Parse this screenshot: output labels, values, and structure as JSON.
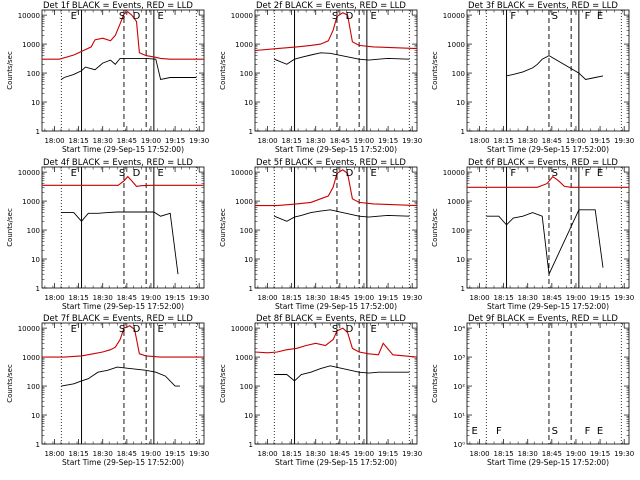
{
  "figure": {
    "xlabel": "Start Time (29-Sep-15 17:52:00)",
    "ylabel": "Counts/sec",
    "xtick_labels": [
      "18:00",
      "18:15",
      "18:30",
      "18:45",
      "19:00",
      "19:15",
      "19:30"
    ],
    "ytick_labels_log": [
      "1",
      "10",
      "100",
      "1000",
      "10000"
    ],
    "ytick_labels_empty": [
      "10⁰",
      "10¹",
      "10²",
      "10³",
      "10⁴"
    ],
    "colors": {
      "events": "#000000",
      "lld": "#cc0000",
      "frame": "#000000"
    }
  },
  "chart_data": [
    {
      "type": "line",
      "title": "Det 1f BLACK = Events, RED = LLD",
      "xlim": [
        17.87,
        19.55
      ],
      "ylim": [
        1,
        15000
      ],
      "yscale": "log",
      "dotted_x": [
        18.07,
        19.47
      ],
      "solid_x": [
        18.28,
        19.03
      ],
      "dashed_x": [
        18.72,
        18.95
      ],
      "markers": [
        {
          "x": 18.2,
          "text": "E"
        },
        {
          "x": 18.7,
          "text": "S"
        },
        {
          "x": 18.85,
          "text": "D"
        },
        {
          "x": 19.1,
          "text": "E"
        }
      ],
      "series": [
        {
          "color": "red",
          "x": [
            17.87,
            18.05,
            18.2,
            18.3,
            18.38,
            18.42,
            18.5,
            18.58,
            18.63,
            18.68,
            18.72,
            18.76,
            18.8,
            18.85,
            18.88,
            18.95,
            19.05,
            19.1,
            19.2,
            19.55
          ],
          "y": [
            300,
            300,
            420,
            600,
            800,
            1400,
            1600,
            1300,
            2000,
            5000,
            11000,
            13000,
            10000,
            6000,
            500,
            400,
            350,
            320,
            300,
            300
          ]
        },
        {
          "color": "black",
          "x": [
            18.07,
            18.1,
            18.2,
            18.28,
            18.32,
            18.42,
            18.5,
            18.58,
            18.63,
            18.68,
            18.95,
            19.05,
            19.1,
            19.2,
            19.47
          ],
          "y": [
            60,
            70,
            90,
            120,
            160,
            130,
            220,
            280,
            200,
            320,
            320,
            300,
            60,
            70,
            70
          ]
        }
      ]
    },
    {
      "type": "line",
      "title": "Det 2f BLACK = Events, RED = LLD",
      "xlim": [
        17.87,
        19.55
      ],
      "ylim": [
        1,
        15000
      ],
      "yscale": "log",
      "dotted_x": [
        18.07,
        19.47
      ],
      "solid_x": [
        18.28,
        19.03
      ],
      "dashed_x": [
        18.72,
        18.95
      ],
      "markers": [
        {
          "x": 18.7,
          "text": "S"
        },
        {
          "x": 18.85,
          "text": "D"
        },
        {
          "x": 19.1,
          "text": "E"
        }
      ],
      "series": [
        {
          "color": "red",
          "x": [
            17.87,
            18.1,
            18.3,
            18.45,
            18.55,
            18.63,
            18.68,
            18.72,
            18.78,
            18.83,
            18.88,
            18.95,
            19.1,
            19.55
          ],
          "y": [
            600,
            700,
            800,
            900,
            1000,
            1300,
            3000,
            9000,
            12000,
            10000,
            1200,
            900,
            800,
            700
          ]
        },
        {
          "color": "black",
          "x": [
            18.07,
            18.2,
            18.28,
            18.35,
            18.45,
            18.55,
            18.65,
            18.95,
            19.05,
            19.15,
            19.25,
            19.47
          ],
          "y": [
            300,
            200,
            300,
            350,
            420,
            500,
            480,
            300,
            280,
            300,
            320,
            300
          ]
        }
      ]
    },
    {
      "type": "line",
      "title": "Det 3f BLACK = Events, RED = LLD",
      "xlim": [
        17.87,
        19.55
      ],
      "ylim": [
        1,
        15000
      ],
      "yscale": "log",
      "dotted_x": [
        18.07,
        19.47
      ],
      "solid_x": [
        18.28,
        19.03
      ],
      "dashed_x": [
        18.72,
        18.95
      ],
      "markers": [
        {
          "x": 18.35,
          "text": "F"
        },
        {
          "x": 18.78,
          "text": "S"
        },
        {
          "x": 19.12,
          "text": "F"
        },
        {
          "x": 19.25,
          "text": "E"
        }
      ],
      "series": [
        {
          "color": "black",
          "x": [
            18.28,
            18.35,
            18.45,
            18.55,
            18.6,
            18.65,
            18.72,
            19.03,
            19.1,
            19.2,
            19.28
          ],
          "y": [
            80,
            90,
            110,
            150,
            200,
            300,
            400,
            100,
            60,
            70,
            80
          ]
        }
      ]
    },
    {
      "type": "line",
      "title": "Det 4f BLACK = Events, RED = LLD",
      "xlim": [
        17.87,
        19.55
      ],
      "ylim": [
        1,
        15000
      ],
      "yscale": "log",
      "dotted_x": [
        18.07,
        19.47
      ],
      "solid_x": [
        18.28,
        19.03
      ],
      "dashed_x": [
        18.72,
        18.95
      ],
      "markers": [
        {
          "x": 18.2,
          "text": "E"
        },
        {
          "x": 18.7,
          "text": "S"
        },
        {
          "x": 18.85,
          "text": "D"
        },
        {
          "x": 19.1,
          "text": "E"
        }
      ],
      "series": [
        {
          "color": "red",
          "x": [
            17.87,
            18.6,
            18.66,
            18.72,
            18.76,
            18.8,
            18.85,
            18.9,
            19.0,
            19.55
          ],
          "y": [
            3500,
            3500,
            3500,
            5000,
            7000,
            5000,
            3200,
            3400,
            3500,
            3500
          ]
        },
        {
          "color": "black",
          "x": [
            18.07,
            18.2,
            18.28,
            18.35,
            18.45,
            18.55,
            18.65,
            19.03,
            19.1,
            19.2,
            19.28
          ],
          "y": [
            400,
            400,
            200,
            380,
            380,
            400,
            420,
            420,
            300,
            380,
            3
          ]
        }
      ]
    },
    {
      "type": "line",
      "title": "Det 5f BLACK = Events, RED = LLD",
      "xlim": [
        17.87,
        19.55
      ],
      "ylim": [
        1,
        15000
      ],
      "yscale": "log",
      "dotted_x": [
        18.07,
        19.47
      ],
      "solid_x": [
        18.28,
        19.03
      ],
      "dashed_x": [
        18.72,
        18.95
      ],
      "markers": [
        {
          "x": 18.7,
          "text": "S"
        },
        {
          "x": 18.85,
          "text": "D"
        },
        {
          "x": 19.1,
          "text": "E"
        }
      ],
      "series": [
        {
          "color": "red",
          "x": [
            17.87,
            18.1,
            18.3,
            18.45,
            18.55,
            18.63,
            18.68,
            18.72,
            18.78,
            18.83,
            18.88,
            18.95,
            19.1,
            19.55
          ],
          "y": [
            700,
            700,
            800,
            900,
            1200,
            1500,
            3000,
            9000,
            12000,
            9000,
            1200,
            900,
            800,
            700
          ]
        },
        {
          "color": "black",
          "x": [
            18.07,
            18.2,
            18.28,
            18.35,
            18.45,
            18.55,
            18.65,
            18.95,
            19.05,
            19.15,
            19.25,
            19.47
          ],
          "y": [
            300,
            200,
            280,
            320,
            400,
            450,
            500,
            300,
            280,
            300,
            320,
            300
          ]
        }
      ]
    },
    {
      "type": "line",
      "title": "Det 6f BLACK = Events, RED = LLD",
      "xlim": [
        17.87,
        19.55
      ],
      "ylim": [
        1,
        15000
      ],
      "yscale": "log",
      "dotted_x": [
        18.07,
        19.47
      ],
      "solid_x": [
        18.28,
        19.03
      ],
      "dashed_x": [
        18.72,
        18.95
      ],
      "markers": [
        {
          "x": 18.35,
          "text": "F"
        },
        {
          "x": 18.78,
          "text": "S"
        },
        {
          "x": 19.12,
          "text": "F"
        },
        {
          "x": 19.25,
          "text": "E"
        }
      ],
      "series": [
        {
          "color": "red",
          "x": [
            17.87,
            18.6,
            18.7,
            18.76,
            18.82,
            18.88,
            18.95,
            19.1,
            19.55
          ],
          "y": [
            3000,
            3000,
            4000,
            7000,
            5000,
            3200,
            3000,
            3000,
            3000
          ]
        },
        {
          "color": "black",
          "x": [
            18.07,
            18.2,
            18.28,
            18.35,
            18.45,
            18.55,
            18.65,
            18.72,
            19.03,
            19.1,
            19.2,
            19.28
          ],
          "y": [
            300,
            300,
            150,
            260,
            300,
            400,
            300,
            3,
            500,
            500,
            500,
            5
          ]
        }
      ]
    },
    {
      "type": "line",
      "title": "Det 7f BLACK = Events, RED = LLD",
      "xlim": [
        17.87,
        19.55
      ],
      "ylim": [
        1,
        15000
      ],
      "yscale": "log",
      "dotted_x": [
        18.07,
        19.47
      ],
      "solid_x": [
        18.28,
        19.03
      ],
      "dashed_x": [
        18.72,
        18.95
      ],
      "markers": [
        {
          "x": 18.2,
          "text": "E"
        },
        {
          "x": 18.7,
          "text": "S"
        },
        {
          "x": 18.85,
          "text": "D"
        },
        {
          "x": 19.1,
          "text": "E"
        }
      ],
      "series": [
        {
          "color": "red",
          "x": [
            17.87,
            18.1,
            18.28,
            18.4,
            18.5,
            18.58,
            18.63,
            18.68,
            18.72,
            18.78,
            18.83,
            18.88,
            18.95,
            19.1,
            19.55
          ],
          "y": [
            1000,
            1000,
            1100,
            1300,
            1500,
            1800,
            2200,
            4000,
            10000,
            12000,
            9000,
            1300,
            1100,
            1000,
            1000
          ]
        },
        {
          "color": "black",
          "x": [
            18.07,
            18.2,
            18.28,
            18.35,
            18.45,
            18.55,
            18.65,
            18.95,
            19.05,
            19.15,
            19.25,
            19.3
          ],
          "y": [
            100,
            120,
            150,
            180,
            300,
            350,
            450,
            350,
            300,
            220,
            100,
            100
          ]
        }
      ]
    },
    {
      "type": "line",
      "title": "Det 8f BLACK = Events, RED = LLD",
      "xlim": [
        17.87,
        19.55
      ],
      "ylim": [
        1,
        15000
      ],
      "yscale": "log",
      "dotted_x": [
        18.07,
        19.47
      ],
      "solid_x": [
        18.28,
        19.03
      ],
      "dashed_x": [
        18.72,
        18.95
      ],
      "markers": [
        {
          "x": 18.7,
          "text": "S"
        },
        {
          "x": 18.85,
          "text": "D"
        },
        {
          "x": 19.1,
          "text": "E"
        }
      ],
      "series": [
        {
          "color": "red",
          "x": [
            17.87,
            18.0,
            18.1,
            18.2,
            18.3,
            18.4,
            18.5,
            18.6,
            18.68,
            18.72,
            18.78,
            18.83,
            18.88,
            18.95,
            19.05,
            19.15,
            19.2,
            19.3,
            19.55
          ],
          "y": [
            1500,
            1400,
            1500,
            1800,
            2000,
            2500,
            3000,
            2500,
            4000,
            8000,
            10000,
            7000,
            2000,
            1500,
            1300,
            1200,
            3000,
            1200,
            1000
          ]
        },
        {
          "color": "black",
          "x": [
            18.07,
            18.2,
            18.28,
            18.35,
            18.45,
            18.55,
            18.65,
            18.95,
            19.05,
            19.15,
            19.25,
            19.47
          ],
          "y": [
            250,
            250,
            150,
            250,
            300,
            400,
            500,
            300,
            280,
            300,
            300,
            300
          ]
        }
      ]
    },
    {
      "type": "line",
      "title": "Det 9f BLACK = Events, RED = LLD",
      "xlim": [
        17.87,
        19.55
      ],
      "ylim": [
        1,
        15000
      ],
      "yscale": "log",
      "dotted_x": [
        18.07,
        19.47
      ],
      "solid_x": [],
      "dashed_x": [
        18.72,
        18.95
      ],
      "markers": [
        {
          "x": 17.95,
          "text": "E"
        },
        {
          "x": 18.2,
          "text": "F"
        },
        {
          "x": 18.78,
          "text": "S"
        },
        {
          "x": 19.12,
          "text": "F"
        },
        {
          "x": 19.25,
          "text": "E"
        }
      ],
      "empty": true,
      "series": []
    }
  ]
}
